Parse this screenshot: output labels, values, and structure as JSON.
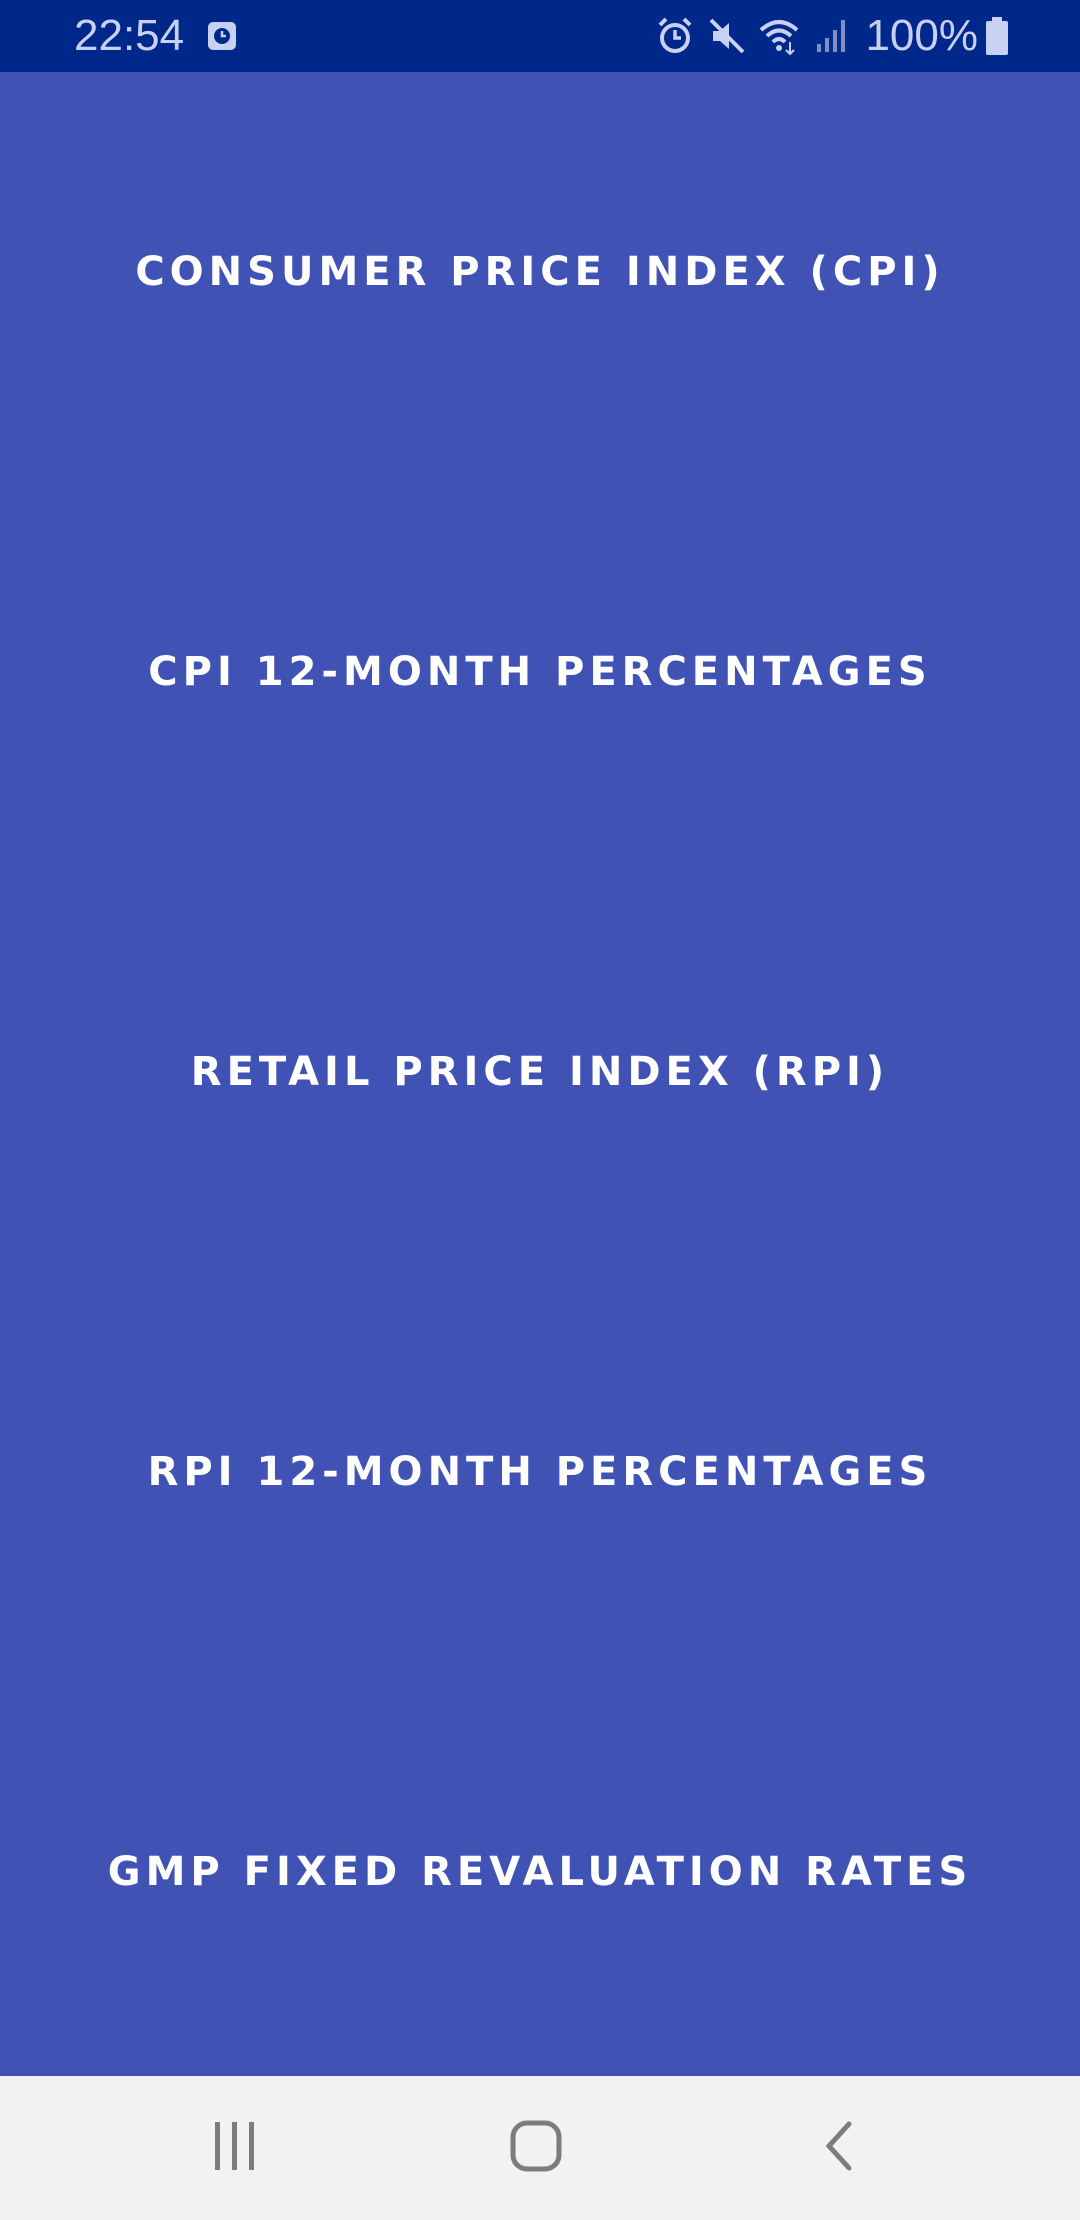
{
  "status_bar": {
    "time": "22:54",
    "battery": "100%",
    "icons": [
      "calendar-icon",
      "alarm-icon",
      "mute-icon",
      "wifi-icon",
      "signal-icon",
      "battery-icon"
    ]
  },
  "menu": {
    "items": [
      {
        "label": "CONSUMER PRICE INDEX (CPI)"
      },
      {
        "label": "CPI 12-MONTH PERCENTAGES"
      },
      {
        "label": "RETAIL PRICE INDEX (RPI)"
      },
      {
        "label": "RPI 12-MONTH PERCENTAGES"
      },
      {
        "label": "GMP FIXED REVALUATION RATES"
      }
    ]
  },
  "nav_bar": {
    "buttons": [
      "recents-icon",
      "home-icon",
      "back-icon"
    ]
  },
  "colors": {
    "status_bar": "#00288a",
    "background": "#4152b5",
    "nav_bar": "#f2f2f2",
    "text": "#ffffff"
  }
}
